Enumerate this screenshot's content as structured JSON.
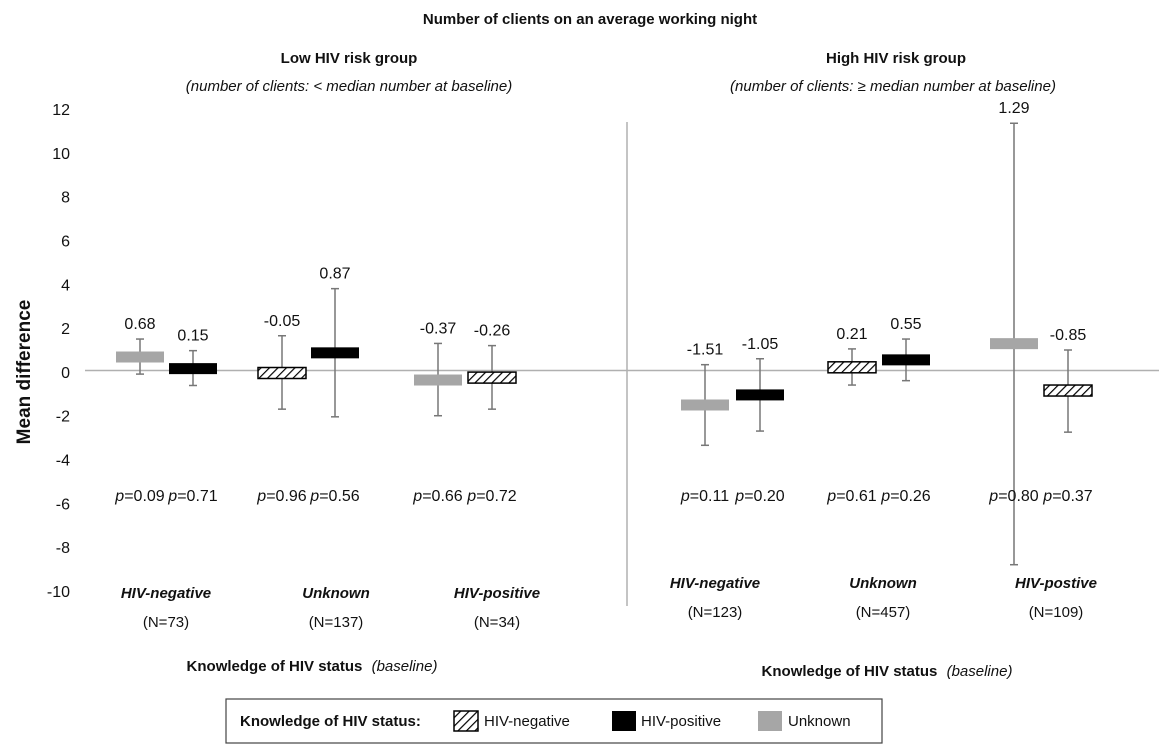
{
  "chart_data": {
    "type": "bar",
    "title": "Number of clients on an average working night",
    "ylabel": "Mean difference",
    "ylim": [
      -10,
      12
    ],
    "yticks": [
      12,
      10,
      8,
      6,
      4,
      2,
      0,
      -2,
      -4,
      -6,
      -8,
      -10
    ],
    "panels": [
      {
        "title": "Low HIV risk group",
        "subtitle": "(number of clients: < median number at baseline)",
        "xlabel_main": "Knowledge of HIV status",
        "xlabel_note": "(baseline)",
        "groups": [
          {
            "label": "HIV-negative",
            "n": "(N=73)",
            "items": [
              {
                "series": "Unknown",
                "value": 0.68,
                "label": "0.68",
                "ci": [
                  -0.1,
                  1.5
                ],
                "p": "=0.09"
              },
              {
                "series": "HIV-positive",
                "value": 0.15,
                "label": "0.15",
                "ci": [
                  -0.62,
                  0.97
                ],
                "p": "=0.71"
              }
            ]
          },
          {
            "label": "Unknown",
            "n": "(N=137)",
            "items": [
              {
                "series": "HIV-negative",
                "value": -0.05,
                "label": "-0.05",
                "ci": [
                  -1.7,
                  1.65
                ],
                "p": "=0.96"
              },
              {
                "series": "HIV-positive",
                "value": 0.87,
                "label": "0.87",
                "ci": [
                  -2.05,
                  3.8
                ],
                "p": "=0.56"
              }
            ]
          },
          {
            "label": "HIV-positive",
            "n": "(N=34)",
            "items": [
              {
                "series": "Unknown",
                "value": -0.37,
                "label": "-0.37",
                "ci": [
                  -2.0,
                  1.3
                ],
                "p": "=0.66"
              },
              {
                "series": "HIV-negative",
                "value": -0.26,
                "label": "-0.26",
                "ci": [
                  -1.7,
                  1.2
                ],
                "p": "=0.72"
              }
            ]
          }
        ]
      },
      {
        "title": "High HIV risk group",
        "subtitle": "(number of clients: ≥ median number at baseline)",
        "xlabel_main": "Knowledge of HIV status",
        "xlabel_note": "(baseline)",
        "groups": [
          {
            "label": "HIV-negative",
            "n": "(N=123)",
            "items": [
              {
                "series": "Unknown",
                "value": -1.51,
                "label": "-1.51",
                "ci": [
                  -3.35,
                  0.33
                ],
                "p": "=0.11"
              },
              {
                "series": "HIV-positive",
                "value": -1.05,
                "label": "-1.05",
                "ci": [
                  -2.7,
                  0.6
                ],
                "p": "=0.20"
              }
            ]
          },
          {
            "label": "Unknown",
            "n": "(N=457)",
            "items": [
              {
                "series": "HIV-negative",
                "value": 0.21,
                "label": "0.21",
                "ci": [
                  -0.6,
                  1.05
                ],
                "p": "=0.61"
              },
              {
                "series": "HIV-positive",
                "value": 0.55,
                "label": "0.55",
                "ci": [
                  -0.4,
                  1.5
                ],
                "p": "=0.26"
              }
            ]
          },
          {
            "label": "HIV-postive",
            "n": "(N=109)",
            "items": [
              {
                "series": "Unknown",
                "value": 1.29,
                "label": "1.29",
                "ci": [
                  -8.8,
                  11.35
                ],
                "p": "=0.80"
              },
              {
                "series": "HIV-negative",
                "value": -0.85,
                "label": "-0.85",
                "ci": [
                  -2.75,
                  1.0
                ],
                "p": "=0.37"
              }
            ]
          }
        ]
      }
    ],
    "legend": {
      "title": "Knowledge of HIV status:",
      "position": "bottom",
      "entries": [
        {
          "series": "HIV-negative",
          "label": "HIV-negative"
        },
        {
          "series": "HIV-positive",
          "label": "HIV-positive"
        },
        {
          "series": "Unknown",
          "label": "Unknown"
        }
      ]
    },
    "series_colors": {
      "HIV-negative": "#ffffff",
      "HIV-positive": "#000000",
      "Unknown": "#a6a6a6"
    },
    "p_prefix": "p"
  }
}
